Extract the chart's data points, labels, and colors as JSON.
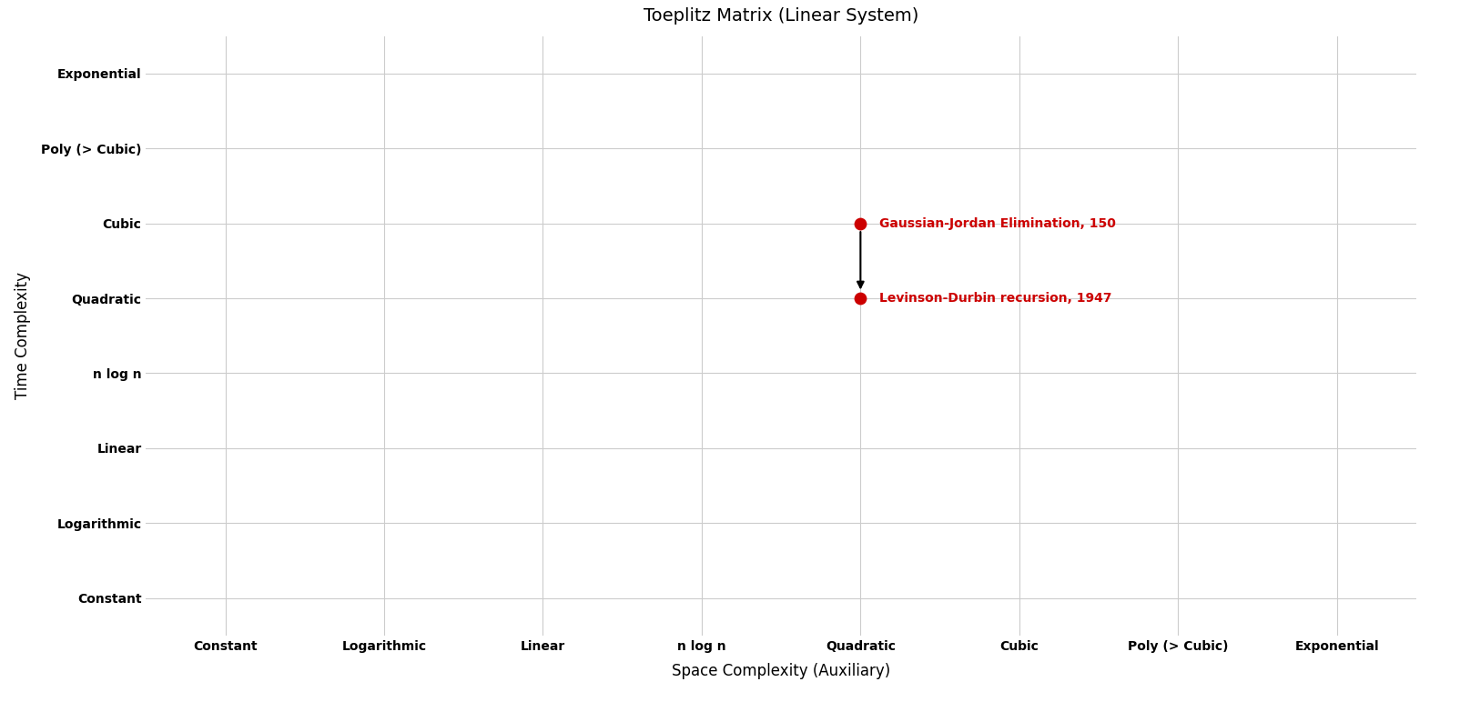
{
  "title": "Toeplitz Matrix (Linear System)",
  "xlabel": "Space Complexity (Auxiliary)",
  "ylabel": "Time Complexity",
  "x_categories": [
    "Constant",
    "Logarithmic",
    "Linear",
    "n log n",
    "Quadratic",
    "Cubic",
    "Poly (> Cubic)",
    "Exponential"
  ],
  "y_categories": [
    "Constant",
    "Logarithmic",
    "Linear",
    "n log n",
    "Quadratic",
    "Cubic",
    "Poly (> Cubic)",
    "Exponential"
  ],
  "points": [
    {
      "name": "Gaussian-Jordan Elimination, 150",
      "x": "Quadratic",
      "y": "Cubic",
      "color": "#cc0000"
    },
    {
      "name": "Levinson-Durbin recursion, 1947",
      "x": "Quadratic",
      "y": "Quadratic",
      "color": "#cc0000"
    }
  ],
  "arrow": {
    "from": "Gaussian-Jordan Elimination, 150",
    "to": "Levinson-Durbin recursion, 1947"
  },
  "point_size": 80,
  "label_fontsize": 10,
  "label_color": "#cc0000",
  "title_fontsize": 14,
  "axis_label_fontsize": 12,
  "tick_fontsize": 10,
  "grid_color": "#cccccc",
  "background_color": "#ffffff"
}
